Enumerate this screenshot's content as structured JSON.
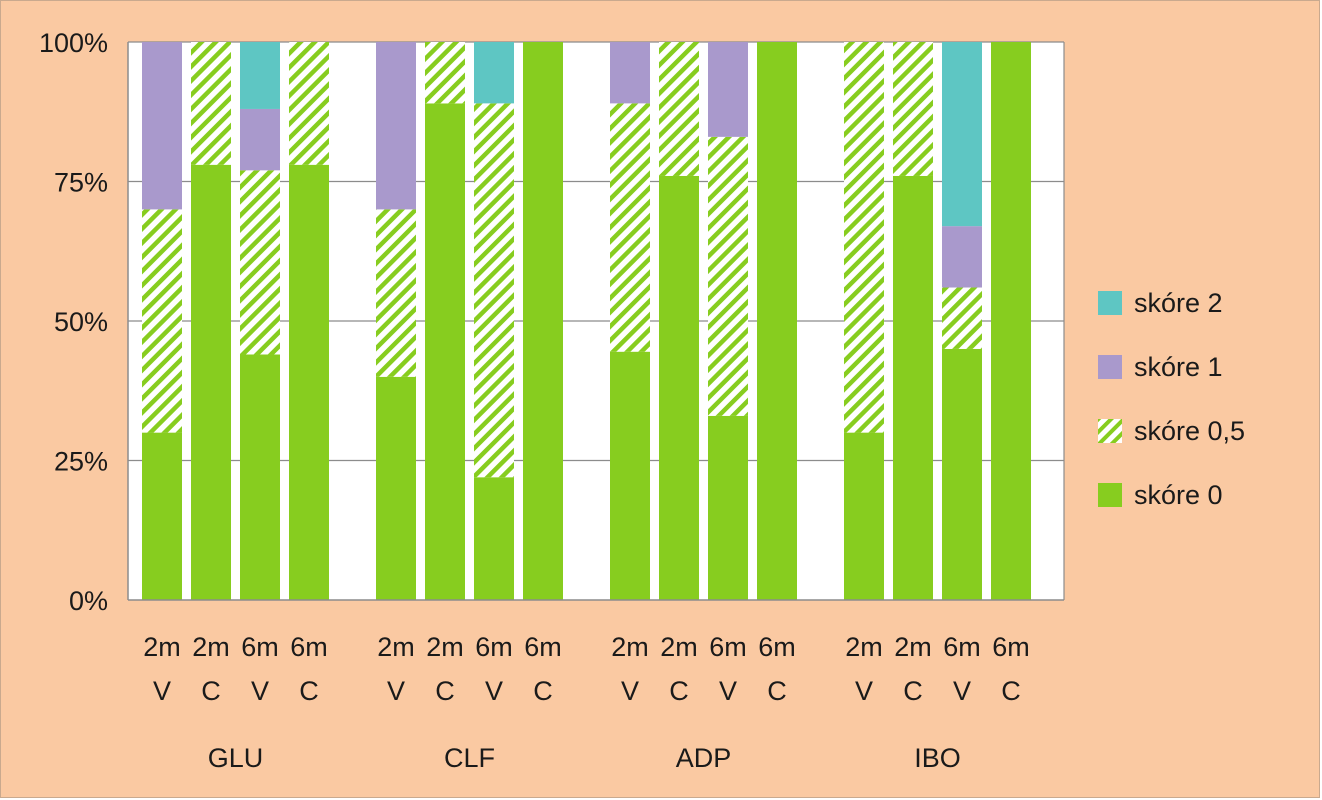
{
  "chart_data": {
    "type": "bar",
    "stacked": true,
    "percent": true,
    "groups": [
      "GLU",
      "CLF",
      "ADP",
      "IBO"
    ],
    "bar_labels_top": [
      "2m",
      "2m",
      "6m",
      "6m"
    ],
    "bar_labels_bottom": [
      "V",
      "C",
      "V",
      "C"
    ],
    "y_ticks": [
      "0%",
      "25%",
      "50%",
      "75%",
      "100%"
    ],
    "ylim": [
      0,
      100
    ],
    "grid": "horizontal",
    "legend_position": "right",
    "series": [
      {
        "name": "skóre 0",
        "color": "#87cd1f",
        "pattern": "solid",
        "values": [
          30,
          78,
          44,
          78,
          40,
          89,
          22,
          100,
          44.5,
          76,
          33,
          100,
          30,
          76,
          45,
          100
        ]
      },
      {
        "name": "skóre 0,5",
        "color": "#87cd1f",
        "pattern": "hatch",
        "values": [
          40,
          22,
          33,
          22,
          30,
          11,
          67,
          0,
          44.5,
          24,
          50,
          0,
          70,
          24,
          11,
          0
        ]
      },
      {
        "name": "skóre 1",
        "color": "#a999cc",
        "pattern": "solid",
        "values": [
          30,
          0,
          11,
          0,
          30,
          0,
          0,
          0,
          11,
          0,
          17,
          0,
          0,
          0,
          11,
          0
        ]
      },
      {
        "name": "skóre 2",
        "color": "#5ec6c3",
        "pattern": "solid",
        "values": [
          0,
          0,
          12,
          0,
          0,
          0,
          11,
          0,
          0,
          0,
          0,
          0,
          0,
          0,
          33,
          0
        ]
      }
    ],
    "legend_order": [
      "skóre 2",
      "skóre 1",
      "skóre 0,5",
      "skóre 0"
    ]
  }
}
